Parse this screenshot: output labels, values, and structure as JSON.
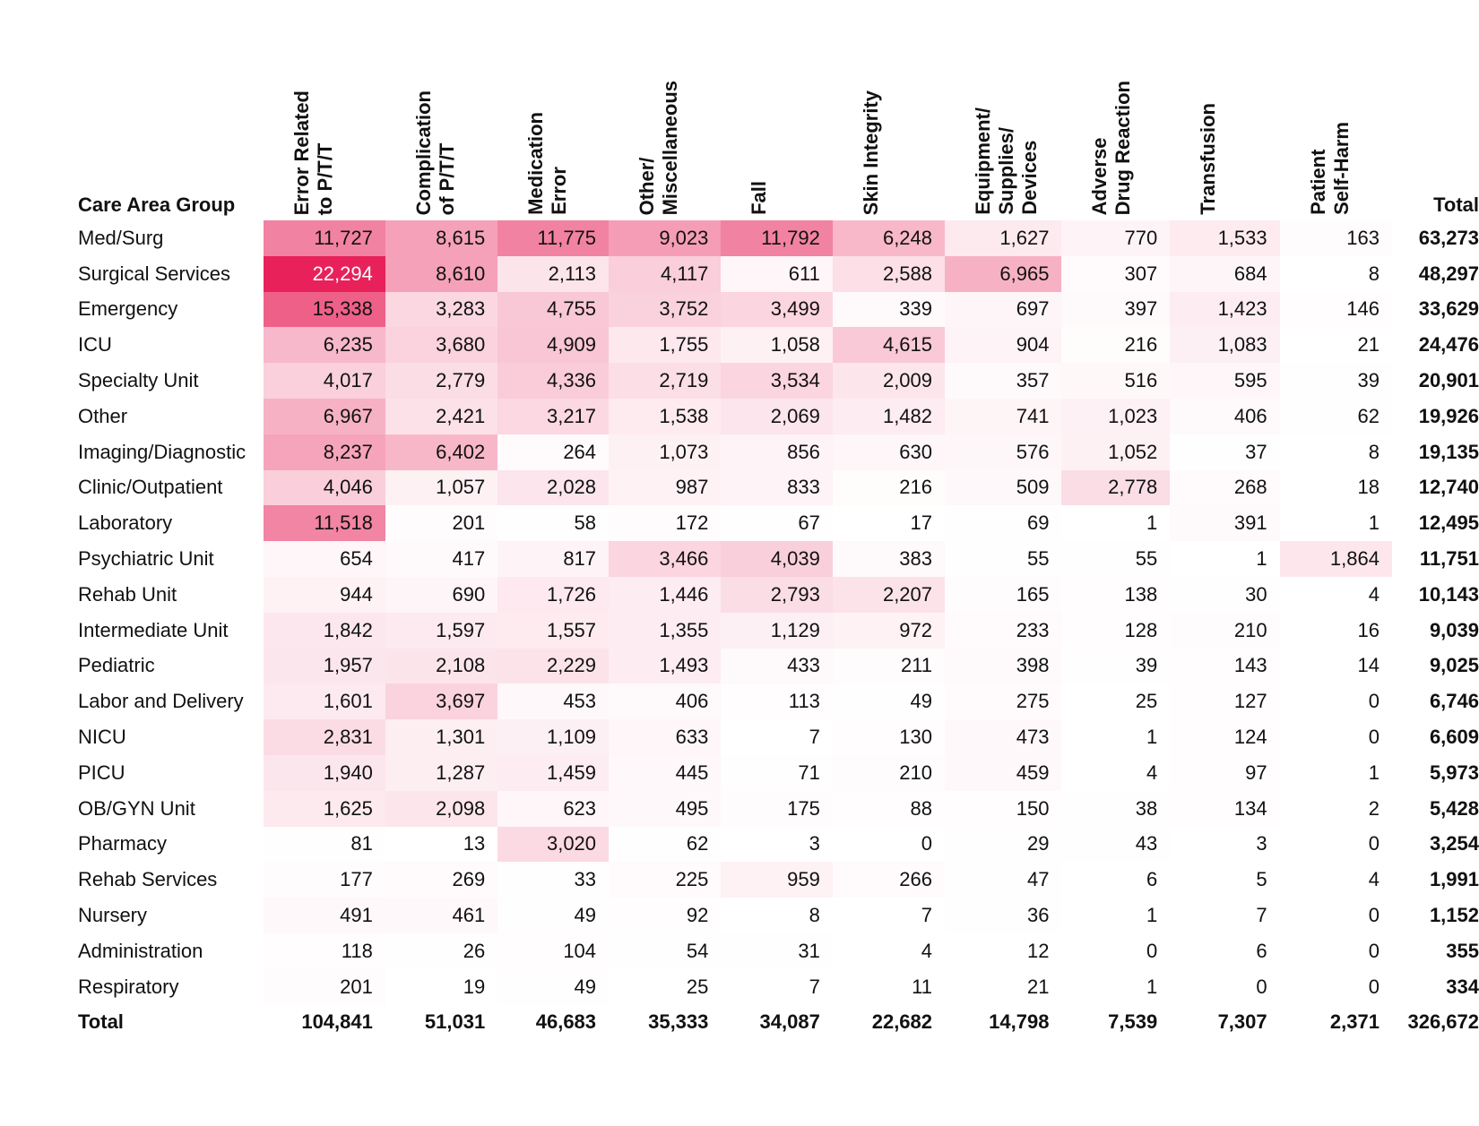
{
  "chart_data": {
    "type": "heatmap",
    "title": "",
    "row_header": "Care Area Group",
    "columns": [
      "Error Related to P/T/T",
      "Complication of P/T/T",
      "Medication Error",
      "Other/ Miscellaneous",
      "Fall",
      "Skin Integrity",
      "Equipment/ Supplies/ Devices",
      "Adverse Drug Reaction",
      "Transfusion",
      "Patient Self-Harm"
    ],
    "total_label": "Total",
    "color_low": "#ffffff",
    "color_high": "#e8215a",
    "rows": [
      {
        "label": "Med/Surg",
        "values": [
          11727,
          8615,
          11775,
          9023,
          11792,
          6248,
          1627,
          770,
          1533,
          163
        ],
        "total": "63,273"
      },
      {
        "label": "Surgical Services",
        "values": [
          22294,
          8610,
          2113,
          4117,
          611,
          2588,
          6965,
          307,
          684,
          8
        ],
        "total": "48,297"
      },
      {
        "label": "Emergency",
        "values": [
          15338,
          3283,
          4755,
          3752,
          3499,
          339,
          697,
          397,
          1423,
          146
        ],
        "total": "33,629"
      },
      {
        "label": "ICU",
        "values": [
          6235,
          3680,
          4909,
          1755,
          1058,
          4615,
          904,
          216,
          1083,
          21
        ],
        "total": "24,476"
      },
      {
        "label": "Specialty Unit",
        "values": [
          4017,
          2779,
          4336,
          2719,
          3534,
          2009,
          357,
          516,
          595,
          39
        ],
        "total": "20,901"
      },
      {
        "label": "Other",
        "values": [
          6967,
          2421,
          3217,
          1538,
          2069,
          1482,
          741,
          1023,
          406,
          62
        ],
        "total": "19,926"
      },
      {
        "label": "Imaging/Diagnostic",
        "values": [
          8237,
          6402,
          264,
          1073,
          856,
          630,
          576,
          1052,
          37,
          8
        ],
        "total": "19,135"
      },
      {
        "label": "Clinic/Outpatient",
        "values": [
          4046,
          1057,
          2028,
          987,
          833,
          216,
          509,
          2778,
          268,
          18
        ],
        "total": "12,740"
      },
      {
        "label": "Laboratory",
        "values": [
          11518,
          201,
          58,
          172,
          67,
          17,
          69,
          1,
          391,
          1
        ],
        "total": "12,495"
      },
      {
        "label": "Psychiatric Unit",
        "values": [
          654,
          417,
          817,
          3466,
          4039,
          383,
          55,
          55,
          1,
          1864
        ],
        "total": "11,751"
      },
      {
        "label": "Rehab Unit",
        "values": [
          944,
          690,
          1726,
          1446,
          2793,
          2207,
          165,
          138,
          30,
          4
        ],
        "total": "10,143"
      },
      {
        "label": "Intermediate Unit",
        "values": [
          1842,
          1597,
          1557,
          1355,
          1129,
          972,
          233,
          128,
          210,
          16
        ],
        "total": "9,039"
      },
      {
        "label": "Pediatric",
        "values": [
          1957,
          2108,
          2229,
          1493,
          433,
          211,
          398,
          39,
          143,
          14
        ],
        "total": "9,025"
      },
      {
        "label": "Labor and Delivery",
        "values": [
          1601,
          3697,
          453,
          406,
          113,
          49,
          275,
          25,
          127,
          0
        ],
        "total": "6,746"
      },
      {
        "label": "NICU",
        "values": [
          2831,
          1301,
          1109,
          633,
          7,
          130,
          473,
          1,
          124,
          0
        ],
        "total": "6,609"
      },
      {
        "label": "PICU",
        "values": [
          1940,
          1287,
          1459,
          445,
          71,
          210,
          459,
          4,
          97,
          1
        ],
        "total": "5,973"
      },
      {
        "label": "OB/GYN Unit",
        "values": [
          1625,
          2098,
          623,
          495,
          175,
          88,
          150,
          38,
          134,
          2
        ],
        "total": "5,428"
      },
      {
        "label": "Pharmacy",
        "values": [
          81,
          13,
          3020,
          62,
          3,
          0,
          29,
          43,
          3,
          0
        ],
        "total": "3,254"
      },
      {
        "label": "Rehab Services",
        "values": [
          177,
          269,
          33,
          225,
          959,
          266,
          47,
          6,
          5,
          4
        ],
        "total": "1,991"
      },
      {
        "label": "Nursery",
        "values": [
          491,
          461,
          49,
          92,
          8,
          7,
          36,
          1,
          7,
          0
        ],
        "total": "1,152"
      },
      {
        "label": "Administration",
        "values": [
          118,
          26,
          104,
          54,
          31,
          4,
          12,
          0,
          6,
          0
        ],
        "total": "355"
      },
      {
        "label": "Respiratory",
        "values": [
          201,
          19,
          49,
          25,
          7,
          11,
          21,
          1,
          0,
          0
        ],
        "total": "334"
      }
    ],
    "column_totals": [
      "104,841",
      "51,031",
      "46,683",
      "35,333",
      "34,087",
      "22,682",
      "14,798",
      "7,539",
      "7,307",
      "2,371"
    ],
    "grand_total": "326,672"
  }
}
